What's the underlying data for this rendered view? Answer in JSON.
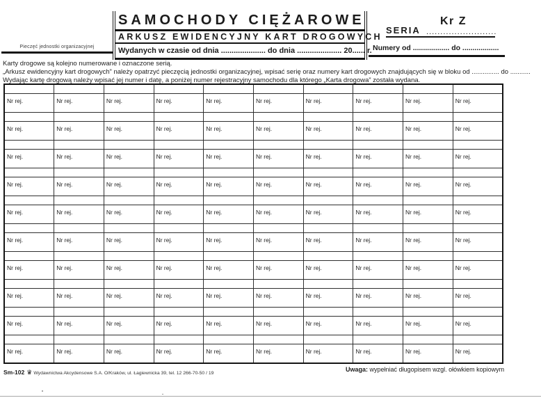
{
  "header": {
    "stamp_label": "Pieczęć jednostki organizacyjnej",
    "title": "SAMOCHODY CIĘŻAROWE",
    "subtitle": "ARKUSZ EWIDENCYJNY KART DROGOWYCH",
    "issued_line": "Wydanych w czasie od dnia ..................... do dnia ..................... 20...... r.",
    "seria_label": "SERIA",
    "seria_dots": "............................",
    "seria_value": "Kr Z",
    "numery_line": "Numery od .................. do .................."
  },
  "instructions": [
    "Karty drogowe są kolejno numerowane i oznaczone serią.",
    "„Arkusz ewidencyjny kart drogowych” należy opatrzyć pieczęcią jednostki organizacyjnej, wpisać serię oraz numery kart drogowych znajdujących się w bloku od ............... do ...........",
    "Wydając kartę drogową należy wpisać jej numer i datę, a poniżej numer rejestracyjny samochodu dla którego „Karta drogowa” została wydana."
  ],
  "table": {
    "cell_label": "Nr rej.",
    "columns": 10,
    "blocks": 10
  },
  "footer": {
    "form_code": "Sm-102",
    "logo_glyph": "♛",
    "publisher": "Wydawnictwa Akcydensowe S.A. O/Kraków, ul. Łagiewnicka 39, tel. 12 266-70-50 / 19",
    "note_label": "Uwaga:",
    "note_text": "wypełniać długopisem wzgl. ołówkiem kopiowym"
  },
  "colors": {
    "ink": "#141414",
    "paper": "#ffffff"
  }
}
